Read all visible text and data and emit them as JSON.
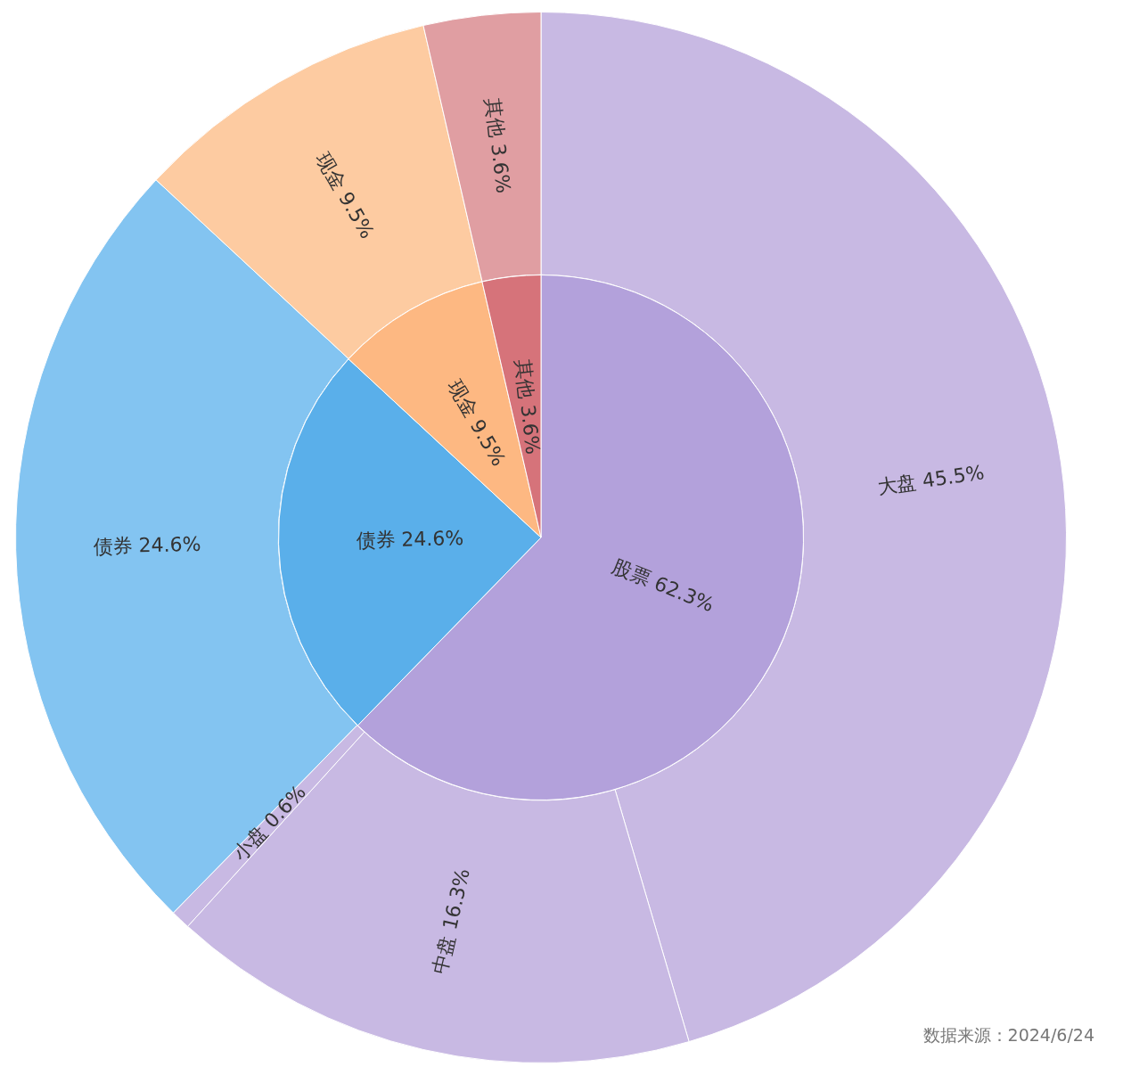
{
  "chart_data": [
    {
      "type": "pie",
      "categories": [
        "股票",
        "债券",
        "现金",
        "其他"
      ],
      "values": [
        62.3,
        24.6,
        9.5,
        3.6
      ],
      "value_labels": [
        "62.3%",
        "24.6%",
        "9.5%",
        "3.6%"
      ],
      "colors": [
        "#b3a1db",
        "#5aafea",
        "#fdb882",
        "#d6737a"
      ]
    },
    {
      "type": "donut",
      "categories": [
        "大盘",
        "中盘",
        "小盘",
        "债券",
        "现金",
        "其他"
      ],
      "values": [
        45.5,
        16.3,
        0.6,
        24.6,
        9.5,
        3.6
      ],
      "value_labels": [
        "45.5%",
        "16.3%",
        "0.6%",
        "24.6%",
        "9.5%",
        "3.6%"
      ],
      "colors": [
        "#c8b9e3",
        "#c8b9e3",
        "#c8b9e3",
        "#83c4f1",
        "#fdcba1",
        "#e09ea2"
      ],
      "annotations": [
        "数据来源：2024/6/24"
      ]
    }
  ]
}
